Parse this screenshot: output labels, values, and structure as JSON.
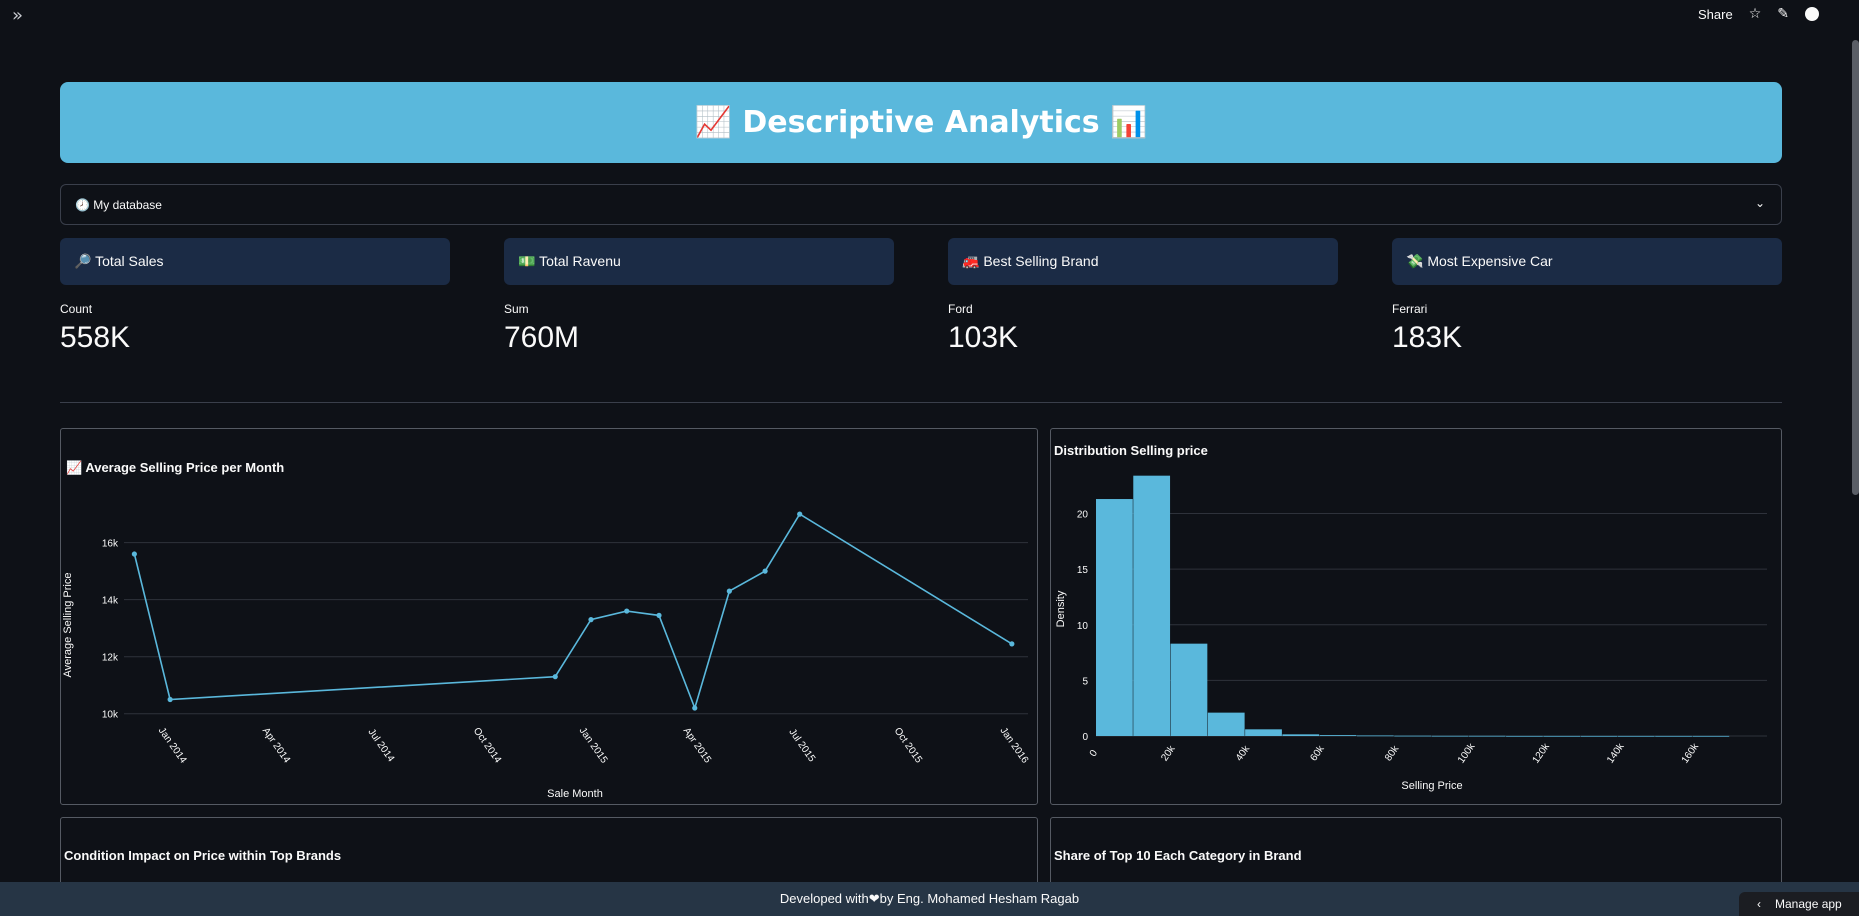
{
  "topbar": {
    "sidebar_toggle": "»",
    "share": "Share",
    "icons": [
      "star-icon",
      "pencil-icon",
      "github-icon",
      "menu-icon"
    ]
  },
  "banner": {
    "title": "📈 Descriptive Analytics 📊"
  },
  "expander": {
    "label": "🕗 My database",
    "chevron": "⌄"
  },
  "metrics": [
    {
      "card": "🔎 Total Sales",
      "label": "Count",
      "value": "558K"
    },
    {
      "card": "💵 Total Ravenu",
      "label": "Sum",
      "value": "760M"
    },
    {
      "card": "🚒 Best Selling Brand",
      "label": "Ford",
      "value": "103K"
    },
    {
      "card": "💸 Most Expensive Car",
      "label": "Ferrari",
      "value": "183K"
    }
  ],
  "panels": {
    "line_title": "📈 Average Selling Price per Month",
    "hist_title": "Distribution Selling price",
    "condition_title": "Condition Impact on Price within Top Brands",
    "share_title": "Share of Top 10 Each Category in Brand"
  },
  "footer": {
    "text": "Developed with❤by Eng. Mohamed Hesham Ragab"
  },
  "manage_app": {
    "label": "Manage app",
    "arrow": "‹"
  },
  "colors": {
    "accent": "#5ab8dc",
    "card": "#1b2b45",
    "bg": "#0e1117"
  },
  "chart_data": [
    {
      "type": "line",
      "title": "📈 Average Selling Price per Month",
      "xlabel": "Sale Month",
      "ylabel": "Average Selling Price",
      "x_ticks": [
        "Jan 2014",
        "Apr 2014",
        "Jul 2014",
        "Oct 2014",
        "Jan 2015",
        "Apr 2015",
        "Jul 2015",
        "Oct 2015",
        "Jan 2016"
      ],
      "y_ticks": [
        "10k",
        "12k",
        "14k",
        "16k"
      ],
      "ylim": [
        9500,
        17600
      ],
      "points": [
        {
          "x": "2013-12-01",
          "y": 15600
        },
        {
          "x": "2014-01-01",
          "y": 10500
        },
        {
          "x": "2014-12-01",
          "y": 11300
        },
        {
          "x": "2015-01-01",
          "y": 13300
        },
        {
          "x": "2015-02-01",
          "y": 13600
        },
        {
          "x": "2015-03-01",
          "y": 13450
        },
        {
          "x": "2015-04-01",
          "y": 10200
        },
        {
          "x": "2015-05-01",
          "y": 14300
        },
        {
          "x": "2015-06-01",
          "y": 15000
        },
        {
          "x": "2015-07-01",
          "y": 17000
        },
        {
          "x": "2016-01-01",
          "y": 12450
        }
      ],
      "grid": true
    },
    {
      "type": "bar",
      "title": "Distribution Selling price",
      "xlabel": "Selling Price",
      "ylabel": "Density",
      "x_ticks": [
        "0",
        "20k",
        "40k",
        "60k",
        "80k",
        "100k",
        "120k",
        "140k",
        "160k"
      ],
      "y_ticks": [
        "0",
        "5",
        "10",
        "15",
        "20"
      ],
      "ylim": [
        0,
        24
      ],
      "bin_edges": [
        0,
        10000,
        20000,
        30000,
        40000,
        50000,
        60000,
        70000,
        80000,
        90000,
        100000,
        110000,
        120000,
        130000,
        140000,
        150000,
        160000,
        170000
      ],
      "values": [
        21.3,
        23.4,
        8.3,
        2.1,
        0.6,
        0.15,
        0.08,
        0.05,
        0.03,
        0.02,
        0.02,
        0.01,
        0.01,
        0.01,
        0.01,
        0.01,
        0.01
      ],
      "grid": true
    }
  ]
}
